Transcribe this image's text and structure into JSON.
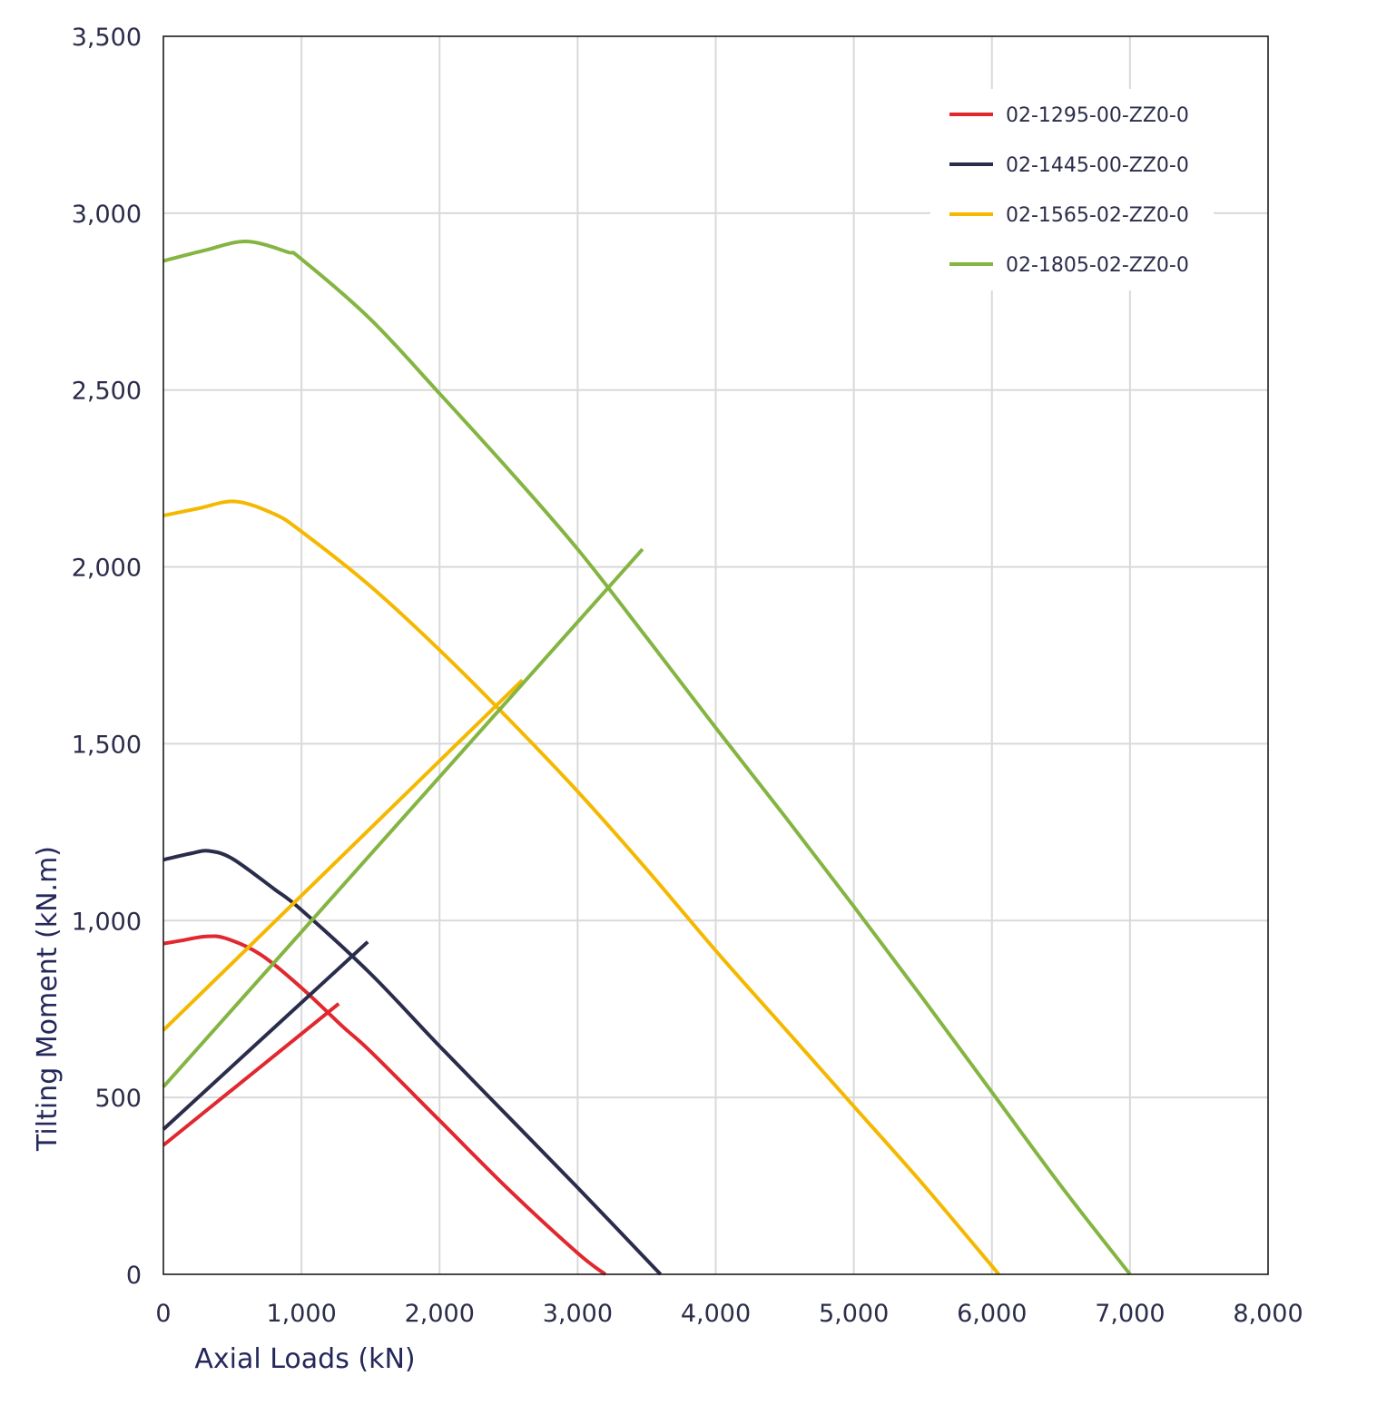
{
  "chart_data": {
    "type": "line",
    "xlabel": "Axial Loads (kN)",
    "ylabel": "Tilting Moment (kN.m)",
    "xlim": [
      0,
      8000
    ],
    "ylim": [
      0,
      3500
    ],
    "xticks": [
      0,
      1000,
      2000,
      3000,
      4000,
      5000,
      6000,
      7000,
      8000
    ],
    "yticks": [
      0,
      500,
      1000,
      1500,
      2000,
      2500,
      3000,
      3500
    ],
    "xtick_labels": [
      "0",
      "1,000",
      "2,000",
      "3,000",
      "4,000",
      "5,000",
      "6,000",
      "7,000",
      "8,000"
    ],
    "ytick_labels": [
      "0",
      "500",
      "1,000",
      "1,500",
      "2,000",
      "2,500",
      "3,000",
      "3,500"
    ],
    "grid": true,
    "legend_position": "top-right",
    "series": [
      {
        "name": "02-1295-00-ZZ0-0",
        "color": "#e0282e",
        "curve": [
          [
            0,
            935
          ],
          [
            150,
            945
          ],
          [
            300,
            955
          ],
          [
            450,
            950
          ],
          [
            700,
            905
          ],
          [
            1000,
            810
          ],
          [
            1300,
            700
          ],
          [
            1500,
            630
          ],
          [
            2000,
            435
          ],
          [
            2500,
            240
          ],
          [
            3000,
            60
          ],
          [
            3200,
            0
          ]
        ],
        "line": [
          [
            0,
            365
          ],
          [
            1270,
            765
          ]
        ]
      },
      {
        "name": "02-1445-00-ZZ0-0",
        "color": "#2a2c4c",
        "curve": [
          [
            0,
            1172
          ],
          [
            200,
            1190
          ],
          [
            330,
            1197
          ],
          [
            500,
            1175
          ],
          [
            800,
            1090
          ],
          [
            1000,
            1030
          ],
          [
            1500,
            850
          ],
          [
            2000,
            645
          ],
          [
            2500,
            445
          ],
          [
            3000,
            245
          ],
          [
            3600,
            0
          ]
        ],
        "line": [
          [
            0,
            410
          ],
          [
            1480,
            940
          ]
        ]
      },
      {
        "name": "02-1565-02-ZZ0-0",
        "color": "#f5b800",
        "curve": [
          [
            0,
            2145
          ],
          [
            250,
            2165
          ],
          [
            520,
            2185
          ],
          [
            800,
            2150
          ],
          [
            1000,
            2100
          ],
          [
            1500,
            1945
          ],
          [
            2000,
            1765
          ],
          [
            2500,
            1570
          ],
          [
            3000,
            1365
          ],
          [
            3500,
            1145
          ],
          [
            4000,
            915
          ],
          [
            4500,
            695
          ],
          [
            5000,
            475
          ],
          [
            5500,
            255
          ],
          [
            6050,
            0
          ]
        ],
        "line": [
          [
            0,
            690
          ],
          [
            2600,
            1680
          ]
        ]
      },
      {
        "name": "02-1805-02-ZZ0-0",
        "color": "#84b542",
        "curve": [
          [
            0,
            2865
          ],
          [
            300,
            2895
          ],
          [
            600,
            2920
          ],
          [
            900,
            2890
          ],
          [
            1000,
            2870
          ],
          [
            1500,
            2700
          ],
          [
            2000,
            2490
          ],
          [
            2500,
            2275
          ],
          [
            3000,
            2050
          ],
          [
            3500,
            1800
          ],
          [
            4000,
            1545
          ],
          [
            4500,
            1295
          ],
          [
            5000,
            1040
          ],
          [
            5500,
            780
          ],
          [
            6000,
            515
          ],
          [
            6500,
            250
          ],
          [
            7000,
            0
          ]
        ],
        "line": [
          [
            0,
            530
          ],
          [
            3470,
            2050
          ]
        ]
      }
    ]
  }
}
